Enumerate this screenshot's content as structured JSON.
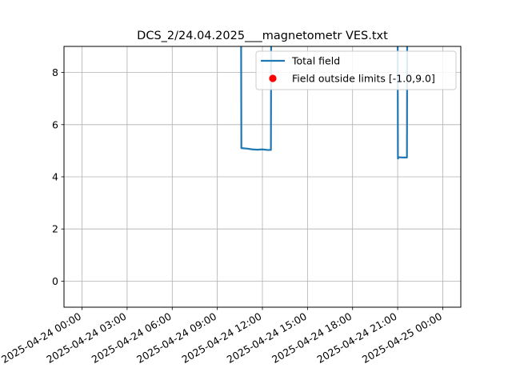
{
  "chart_data": {
    "type": "line",
    "title": "DCS_2/24.04.2025___magnetometr VES.txt",
    "xlabel": "",
    "ylabel": "",
    "ylim": [
      -1.0,
      9.0
    ],
    "y_ticks": [
      0,
      2,
      4,
      6,
      8
    ],
    "xlim": [
      "2025-04-23 22:48",
      "2025-04-25 01:12"
    ],
    "x_ticks": [
      "2025-04-24 00:00",
      "2025-04-24 03:00",
      "2025-04-24 06:00",
      "2025-04-24 09:00",
      "2025-04-24 12:00",
      "2025-04-24 15:00",
      "2025-04-24 18:00",
      "2025-04-24 21:00",
      "2025-04-25 00:00"
    ],
    "grid": true,
    "legend_position": "upper right",
    "series": [
      {
        "name": "Total field",
        "color": "#1f77b4",
        "segments": [
          [
            {
              "x": "2025-04-24 10:35",
              "y": 9.5
            },
            {
              "x": "2025-04-24 10:36",
              "y": 5.1
            },
            {
              "x": "2025-04-24 11:00",
              "y": 5.08
            },
            {
              "x": "2025-04-24 11:20",
              "y": 5.05
            },
            {
              "x": "2025-04-24 11:40",
              "y": 5.04
            },
            {
              "x": "2025-04-24 12:00",
              "y": 5.05
            },
            {
              "x": "2025-04-24 12:20",
              "y": 5.03
            },
            {
              "x": "2025-04-24 12:34",
              "y": 5.03
            },
            {
              "x": "2025-04-24 12:35",
              "y": 9.5
            }
          ],
          [
            {
              "x": "2025-04-24 21:00",
              "y": 9.5
            },
            {
              "x": "2025-04-24 21:01",
              "y": 4.7
            },
            {
              "x": "2025-04-24 21:05",
              "y": 4.75
            },
            {
              "x": "2025-04-24 21:20",
              "y": 4.74
            },
            {
              "x": "2025-04-24 21:37",
              "y": 4.74
            },
            {
              "x": "2025-04-24 21:38",
              "y": 9.5
            }
          ]
        ]
      },
      {
        "name": "Field outside limits [-1.0,9.0]",
        "color": "#ff0000",
        "marker": "circle",
        "points": []
      }
    ]
  }
}
